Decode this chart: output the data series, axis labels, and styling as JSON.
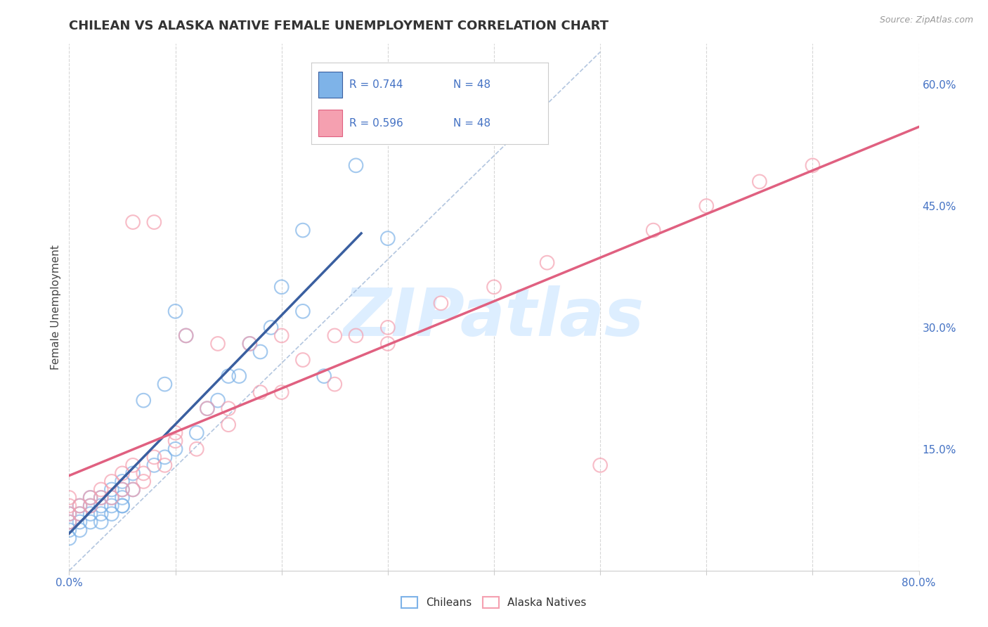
{
  "title": "CHILEAN VS ALASKA NATIVE FEMALE UNEMPLOYMENT CORRELATION CHART",
  "source": "Source: ZipAtlas.com",
  "xlabel": "",
  "ylabel": "Female Unemployment",
  "xlim": [
    0.0,
    0.8
  ],
  "ylim": [
    0.0,
    0.65
  ],
  "yticks_right": [
    0.15,
    0.3,
    0.45,
    0.6
  ],
  "ytick_right_labels": [
    "15.0%",
    "30.0%",
    "45.0%",
    "60.0%"
  ],
  "grid_color": "#cccccc",
  "background_color": "#ffffff",
  "chilean_color": "#7eb3e8",
  "alaska_color": "#f5a0b0",
  "chilean_line_color": "#3a5fa0",
  "alaska_line_color": "#e06080",
  "ref_line_color": "#a0b8d8",
  "watermark_color": "#ddeeff",
  "chilean_scatter_x": [
    0.0,
    0.0,
    0.0,
    0.0,
    0.01,
    0.01,
    0.01,
    0.01,
    0.02,
    0.02,
    0.02,
    0.02,
    0.03,
    0.03,
    0.03,
    0.04,
    0.04,
    0.04,
    0.04,
    0.05,
    0.05,
    0.05,
    0.05,
    0.06,
    0.06,
    0.07,
    0.08,
    0.09,
    0.09,
    0.1,
    0.1,
    0.11,
    0.12,
    0.13,
    0.14,
    0.15,
    0.16,
    0.17,
    0.18,
    0.19,
    0.2,
    0.22,
    0.22,
    0.24,
    0.27,
    0.3,
    0.03,
    0.05
  ],
  "chilean_scatter_y": [
    0.04,
    0.05,
    0.06,
    0.07,
    0.05,
    0.06,
    0.07,
    0.08,
    0.06,
    0.07,
    0.08,
    0.09,
    0.07,
    0.08,
    0.09,
    0.07,
    0.08,
    0.09,
    0.1,
    0.08,
    0.09,
    0.1,
    0.11,
    0.1,
    0.12,
    0.21,
    0.13,
    0.14,
    0.23,
    0.15,
    0.32,
    0.29,
    0.17,
    0.2,
    0.21,
    0.24,
    0.24,
    0.28,
    0.27,
    0.3,
    0.35,
    0.32,
    0.42,
    0.24,
    0.5,
    0.41,
    0.06,
    0.08
  ],
  "alaska_scatter_x": [
    0.0,
    0.0,
    0.0,
    0.0,
    0.01,
    0.01,
    0.02,
    0.02,
    0.03,
    0.03,
    0.04,
    0.04,
    0.05,
    0.05,
    0.06,
    0.06,
    0.07,
    0.07,
    0.08,
    0.08,
    0.09,
    0.1,
    0.11,
    0.12,
    0.13,
    0.14,
    0.15,
    0.17,
    0.18,
    0.2,
    0.22,
    0.25,
    0.27,
    0.3,
    0.35,
    0.4,
    0.45,
    0.5,
    0.55,
    0.6,
    0.65,
    0.7,
    0.1,
    0.2,
    0.3,
    0.06,
    0.15,
    0.25
  ],
  "alaska_scatter_y": [
    0.06,
    0.07,
    0.08,
    0.09,
    0.07,
    0.08,
    0.08,
    0.09,
    0.09,
    0.1,
    0.09,
    0.11,
    0.1,
    0.12,
    0.1,
    0.13,
    0.11,
    0.12,
    0.14,
    0.43,
    0.13,
    0.16,
    0.29,
    0.15,
    0.2,
    0.28,
    0.18,
    0.28,
    0.22,
    0.22,
    0.26,
    0.29,
    0.29,
    0.28,
    0.33,
    0.35,
    0.38,
    0.13,
    0.42,
    0.45,
    0.48,
    0.5,
    0.17,
    0.29,
    0.3,
    0.43,
    0.2,
    0.23
  ],
  "title_fontsize": 13,
  "axis_label_fontsize": 11,
  "tick_fontsize": 11,
  "legend_fontsize": 12,
  "chilean_line_x": [
    0.0,
    0.275
  ],
  "alaska_line_x": [
    0.0,
    0.8
  ],
  "ref_line_x": [
    0.0,
    0.5
  ],
  "ref_line_y": [
    0.0,
    0.64
  ]
}
